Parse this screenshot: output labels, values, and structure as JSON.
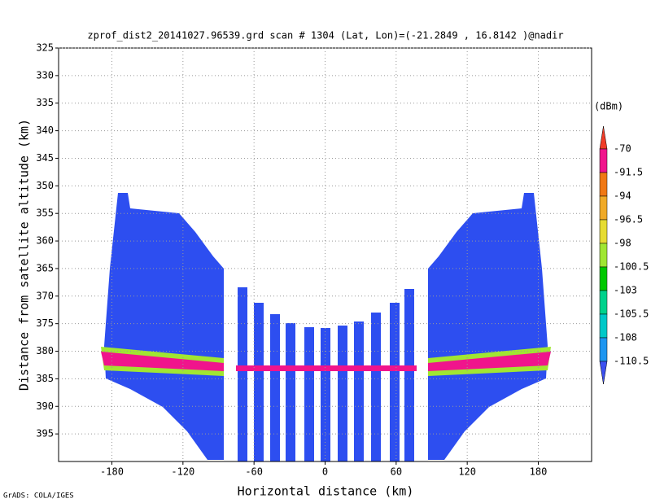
{
  "chart_data": {
    "type": "heatmap",
    "title": "zprof_dist2_20141027.96539.grd  scan # 1304  (Lat, Lon)=(-21.2849 , 16.8142 )@nadir",
    "xlabel": "Horizontal distance (km)",
    "ylabel": "Distance from satellite altitude (km)",
    "xlim": [
      -225,
      225
    ],
    "ylim": [
      325,
      400
    ],
    "xticks": [
      -180,
      -120,
      -60,
      0,
      60,
      120,
      180
    ],
    "yticks": [
      325,
      330,
      335,
      340,
      345,
      350,
      355,
      360,
      365,
      370,
      375,
      380,
      385,
      390,
      395
    ],
    "grid": true,
    "colorbar": {
      "unit": "(dBm)",
      "levels": [
        -70,
        -91.5,
        -94,
        -96.5,
        -98,
        -100.5,
        -103,
        -105.5,
        -108,
        -110.5
      ],
      "colors": [
        "#f03c28",
        "#f0148c",
        "#f07814",
        "#f0aa28",
        "#e6dc32",
        "#a0e632",
        "#00c800",
        "#00d28c",
        "#00c8c8",
        "#1e96f0",
        "#3c50f0"
      ]
    },
    "credit": "GrADS: COLA/IGES"
  }
}
